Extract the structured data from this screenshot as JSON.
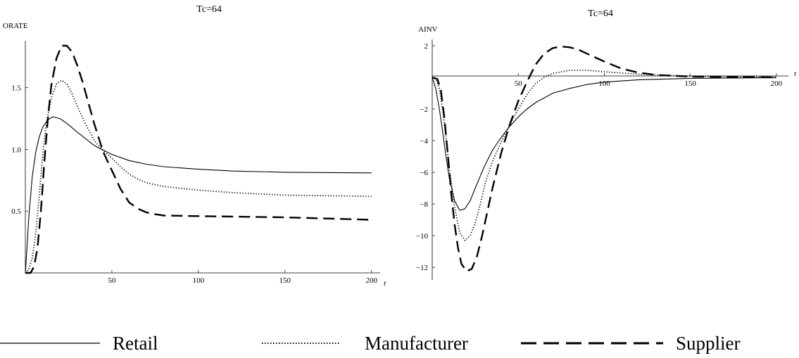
{
  "chart_data": [
    {
      "type": "line",
      "title": "Tc=64",
      "ylabel": "ORATE",
      "xlabel": "t",
      "xlim": [
        0,
        205
      ],
      "ylim": [
        0,
        1.88
      ],
      "xticks": [
        50,
        100,
        150,
        200
      ],
      "yticks": [
        0.5,
        1.0,
        1.5
      ],
      "ytick_labels": [
        "0.5",
        "1.0",
        "1.5"
      ],
      "series": [
        {
          "name": "Retail",
          "style": "solid",
          "x": [
            0,
            1,
            2,
            4,
            6,
            8,
            10,
            13,
            16,
            20,
            25,
            30,
            40,
            50,
            60,
            70,
            80,
            100,
            120,
            150,
            200
          ],
          "y": [
            0,
            0.22,
            0.45,
            0.78,
            0.98,
            1.1,
            1.18,
            1.24,
            1.265,
            1.25,
            1.2,
            1.14,
            1.03,
            0.96,
            0.91,
            0.88,
            0.86,
            0.84,
            0.825,
            0.815,
            0.81
          ]
        },
        {
          "name": "Manufacturer",
          "style": "dotted",
          "x": [
            0,
            2,
            4,
            6,
            8,
            10,
            12,
            15,
            18,
            21,
            24,
            27,
            30,
            35,
            40,
            45,
            50,
            55,
            60,
            65,
            70,
            80,
            100,
            120,
            150,
            200
          ],
          "y": [
            0,
            0.03,
            0.12,
            0.32,
            0.62,
            0.95,
            1.2,
            1.42,
            1.53,
            1.56,
            1.53,
            1.45,
            1.35,
            1.2,
            1.07,
            0.99,
            0.93,
            0.86,
            0.8,
            0.76,
            0.73,
            0.7,
            0.67,
            0.65,
            0.63,
            0.62
          ]
        },
        {
          "name": "Supplier",
          "style": "dashed",
          "x": [
            0,
            3,
            5,
            7,
            9,
            11,
            13,
            15,
            18,
            21,
            24,
            27,
            30,
            33,
            36,
            40,
            45,
            50,
            55,
            60,
            65,
            70,
            75,
            80,
            100,
            150,
            200
          ],
          "y": [
            0,
            0.0,
            0.05,
            0.2,
            0.5,
            0.9,
            1.25,
            1.52,
            1.74,
            1.84,
            1.84,
            1.79,
            1.68,
            1.55,
            1.4,
            1.2,
            0.98,
            0.83,
            0.68,
            0.57,
            0.52,
            0.49,
            0.475,
            0.465,
            0.46,
            0.45,
            0.43
          ]
        }
      ]
    },
    {
      "type": "line",
      "title": "Tc=64",
      "ylabel": "AINV",
      "xlabel": "t",
      "xlim": [
        0,
        207
      ],
      "ylim": [
        -12.8,
        2.4
      ],
      "xticks": [
        50,
        100,
        150,
        200
      ],
      "yticks": [
        2,
        -2,
        -4,
        -6,
        -8,
        -10,
        -12
      ],
      "ytick_labels": [
        "2",
        "−2",
        "−4",
        "−6",
        "−8",
        "−10",
        "−12"
      ],
      "series": [
        {
          "name": "Retail",
          "style": "solid",
          "x": [
            0,
            2,
            4,
            6,
            8,
            10,
            13,
            16,
            19,
            22,
            25,
            30,
            35,
            40,
            45,
            50,
            55,
            60,
            70,
            80,
            90,
            100,
            120,
            150,
            200
          ],
          "y": [
            0,
            -0.7,
            -1.9,
            -3.4,
            -5.0,
            -6.4,
            -7.8,
            -8.4,
            -8.3,
            -7.8,
            -7.0,
            -5.7,
            -4.6,
            -3.8,
            -3.1,
            -2.5,
            -2.0,
            -1.6,
            -1.0,
            -0.7,
            -0.45,
            -0.3,
            -0.15,
            -0.06,
            -0.02
          ]
        },
        {
          "name": "Manufacturer",
          "style": "dotted",
          "x": [
            0,
            2,
            4,
            6,
            8,
            10,
            13,
            16,
            19,
            22,
            25,
            28,
            31,
            35,
            40,
            45,
            50,
            55,
            60,
            65,
            70,
            80,
            90,
            100,
            120,
            150,
            200
          ],
          "y": [
            0,
            -0.1,
            -0.6,
            -2.0,
            -3.8,
            -5.8,
            -8.2,
            -9.8,
            -10.3,
            -10.0,
            -9.2,
            -8.0,
            -6.6,
            -5.3,
            -4.1,
            -3.0,
            -2.0,
            -1.1,
            -0.4,
            0.0,
            0.25,
            0.45,
            0.45,
            0.35,
            0.2,
            0.08,
            0.02
          ]
        },
        {
          "name": "Supplier",
          "style": "dashed",
          "x": [
            0,
            3,
            5,
            7,
            9,
            11,
            13,
            15,
            17,
            20,
            23,
            26,
            29,
            32,
            35,
            40,
            45,
            50,
            55,
            60,
            65,
            70,
            75,
            80,
            85,
            90,
            100,
            110,
            120,
            130,
            150,
            200
          ],
          "y": [
            0,
            -0.1,
            -0.8,
            -2.5,
            -4.8,
            -7.3,
            -9.3,
            -10.8,
            -11.8,
            -12.25,
            -12.1,
            -11.3,
            -10.0,
            -8.5,
            -7.0,
            -4.8,
            -3.0,
            -1.5,
            -0.3,
            0.8,
            1.5,
            1.85,
            1.95,
            1.9,
            1.75,
            1.5,
            1.0,
            0.55,
            0.3,
            0.15,
            0.05,
            0.0
          ]
        }
      ]
    }
  ],
  "legend": {
    "items": [
      {
        "name": "Retail",
        "style": "solid"
      },
      {
        "name": "Manufacturer",
        "style": "dotted"
      },
      {
        "name": "Supplier",
        "style": "dashed"
      }
    ]
  }
}
